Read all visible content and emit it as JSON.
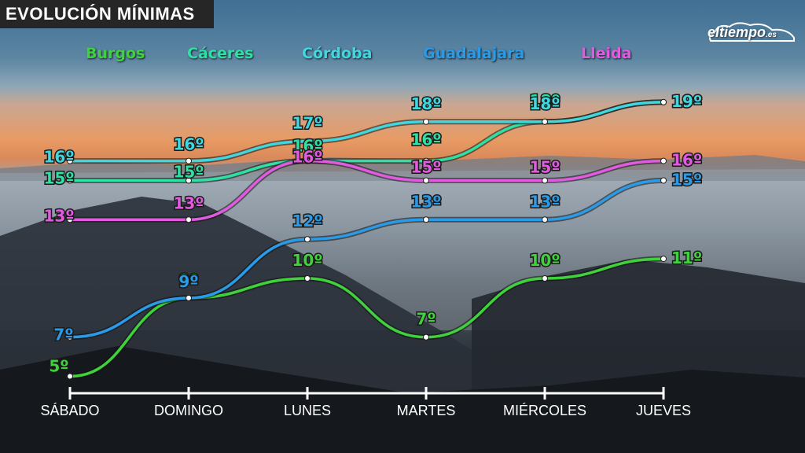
{
  "title": "EVOLUCIÓN MÍNIMAS",
  "logo": {
    "name": "eltiempo",
    "tld": ".es"
  },
  "chart_data": {
    "type": "line",
    "title": "EVOLUCIÓN MÍNIMAS",
    "categories": [
      "SÁBADO",
      "DOMINGO",
      "LUNES",
      "MARTES",
      "MIÉRCOLES",
      "JUEVES"
    ],
    "unit": "º",
    "ylim": [
      4,
      21
    ],
    "legend_position": "top",
    "grid": false,
    "series": [
      {
        "name": "Burgos",
        "color": "#3fd23c",
        "values": [
          5,
          9,
          10,
          7,
          10,
          11
        ],
        "labels": [
          "5º",
          "9º",
          "10º",
          "7º",
          "10º",
          "11º"
        ]
      },
      {
        "name": "Cáceres",
        "color": "#2fe0a4",
        "values": [
          15,
          15,
          16,
          16,
          18,
          19
        ],
        "labels": [
          "15º",
          "15º",
          "16º",
          "16º",
          "18º",
          "19º"
        ]
      },
      {
        "name": "Córdoba",
        "color": "#3fd7e0",
        "values": [
          16,
          16,
          17,
          18,
          18,
          19
        ],
        "labels": [
          "16º",
          "16º",
          "17º",
          "18º",
          "18º",
          "19º"
        ]
      },
      {
        "name": "Guadalajara",
        "color": "#2a9be8",
        "values": [
          7,
          9,
          12,
          13,
          13,
          15
        ],
        "labels": [
          "7º",
          "9º",
          "12º",
          "13º",
          "13º",
          "15º"
        ]
      },
      {
        "name": "Lleida",
        "color": "#e15ae0",
        "values": [
          13,
          13,
          16,
          15,
          15,
          16
        ],
        "labels": [
          "13º",
          "13º",
          "16º",
          "15º",
          "15º",
          "16º"
        ]
      }
    ]
  }
}
